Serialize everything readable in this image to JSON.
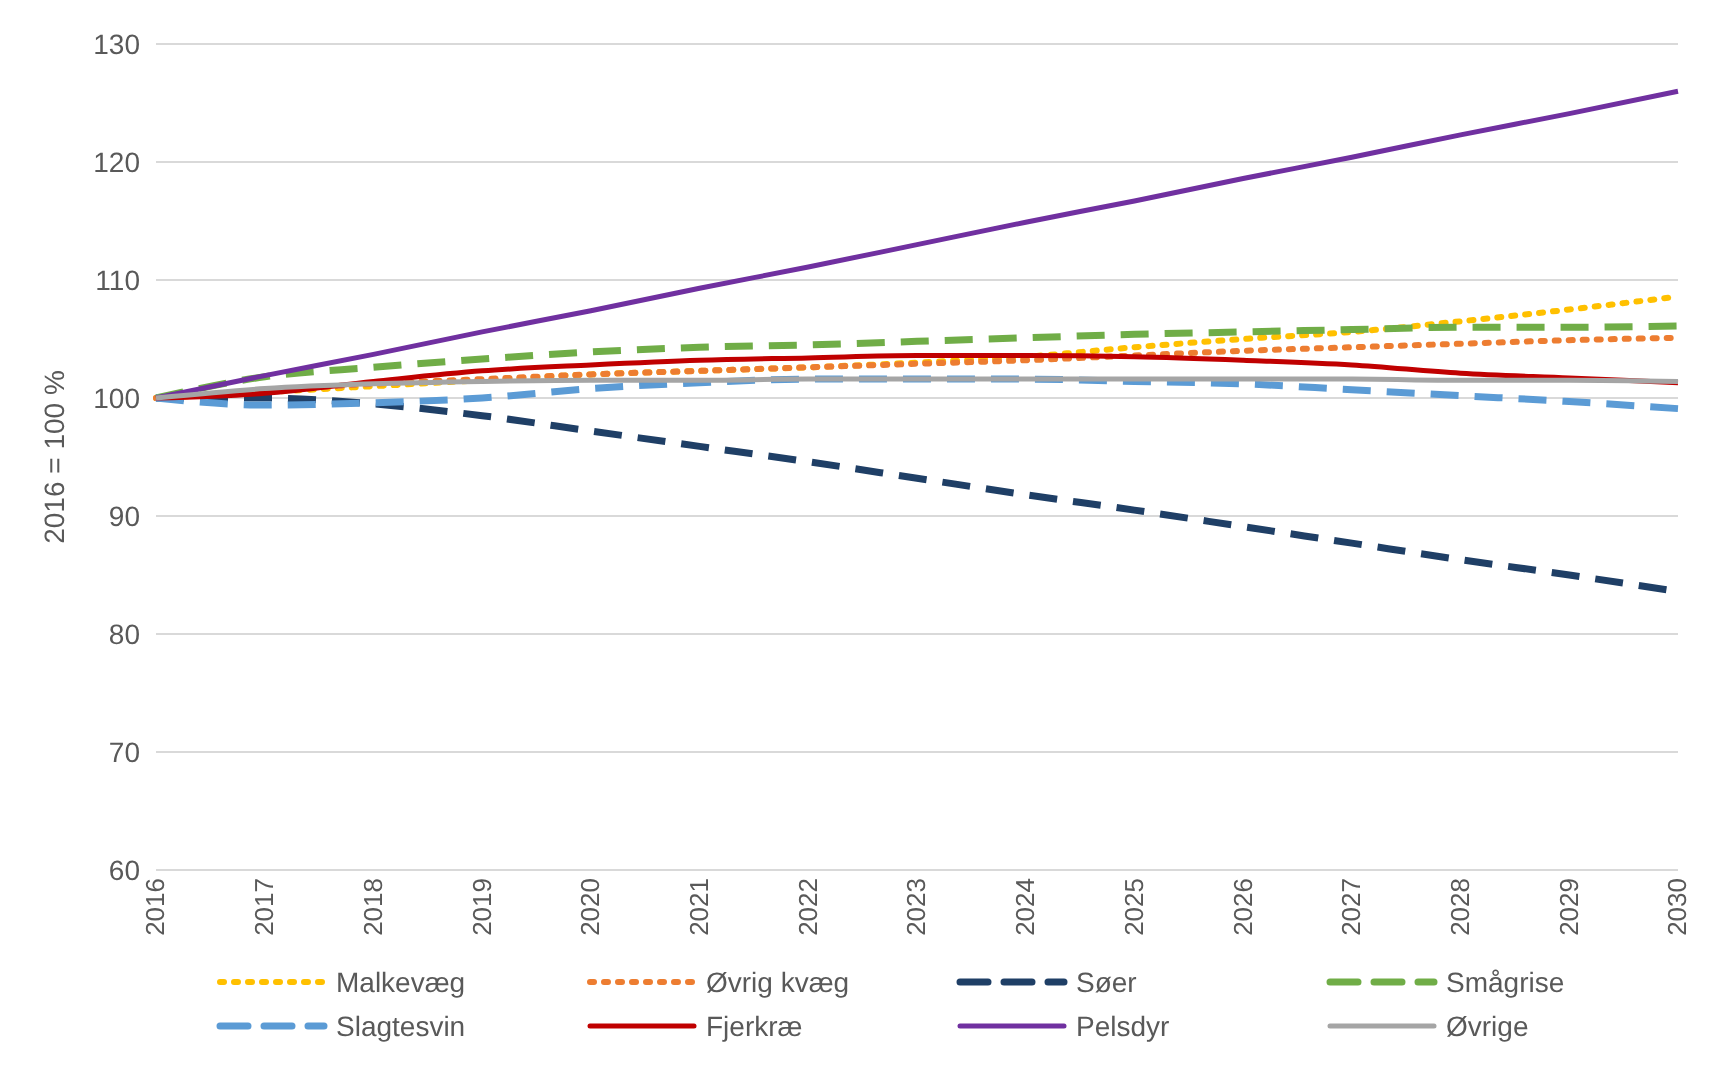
{
  "chart_data": {
    "type": "line",
    "ylabel": "2016 = 100 %",
    "categories": [
      "2016",
      "2017",
      "2018",
      "2019",
      "2020",
      "2021",
      "2022",
      "2023",
      "2024",
      "2025",
      "2026",
      "2027",
      "2028",
      "2029",
      "2030"
    ],
    "ylim": [
      60,
      130
    ],
    "yticks": [
      60,
      70,
      80,
      90,
      100,
      110,
      120,
      130
    ],
    "grid": "y",
    "legend": "bottom",
    "marker": "none",
    "series": [
      {
        "name": "Malkevæg",
        "color": "#ffc000",
        "line_style": "dotted",
        "values": [
          100,
          100.5,
          101,
          101.5,
          102,
          102.3,
          102.6,
          103,
          103.5,
          104.3,
          105,
          105.6,
          106.5,
          107.5,
          108.6
        ]
      },
      {
        "name": "Øvrig kvæg",
        "color": "#ed7d31",
        "line_style": "dotted",
        "values": [
          100,
          100.6,
          101.2,
          101.6,
          102,
          102.3,
          102.6,
          102.9,
          103.2,
          103.6,
          104,
          104.3,
          104.6,
          104.9,
          105.1
        ]
      },
      {
        "name": "Søer",
        "color": "#1f3f66",
        "line_style": "dashed",
        "values": [
          100,
          100,
          99.5,
          98.5,
          97.2,
          95.9,
          94.6,
          93.2,
          91.8,
          90.5,
          89.1,
          87.7,
          86.3,
          85,
          83.6
        ]
      },
      {
        "name": "Smågrise",
        "color": "#70ad47",
        "line_style": "dashed",
        "values": [
          100,
          101.8,
          102.6,
          103.3,
          103.9,
          104.3,
          104.5,
          104.8,
          105.1,
          105.4,
          105.6,
          105.8,
          106,
          106,
          106.1
        ]
      },
      {
        "name": "Slagtesvin",
        "color": "#5b9bd5",
        "line_style": "dashed",
        "values": [
          100,
          99.4,
          99.6,
          100,
          100.8,
          101.3,
          101.6,
          101.6,
          101.6,
          101.4,
          101.2,
          100.7,
          100.2,
          99.7,
          99.1
        ]
      },
      {
        "name": "Fjerkræ",
        "color": "#c00000",
        "line_style": "solid",
        "values": [
          100,
          100.4,
          101.4,
          102.3,
          102.8,
          103.2,
          103.4,
          103.6,
          103.6,
          103.5,
          103.2,
          102.8,
          102.1,
          101.7,
          101.3
        ]
      },
      {
        "name": "Pelsdyr",
        "color": "#7030a0",
        "line_style": "solid",
        "values": [
          100,
          101.9,
          103.7,
          105.6,
          107.4,
          109.3,
          111.1,
          113,
          114.9,
          116.7,
          118.6,
          120.4,
          122.3,
          124.1,
          126
        ]
      },
      {
        "name": "Øvrige",
        "color": "#a5a5a5",
        "line_style": "solid",
        "values": [
          100,
          100.8,
          101.2,
          101.4,
          101.5,
          101.5,
          101.6,
          101.6,
          101.6,
          101.6,
          101.6,
          101.6,
          101.5,
          101.5,
          101.4
        ]
      }
    ]
  }
}
